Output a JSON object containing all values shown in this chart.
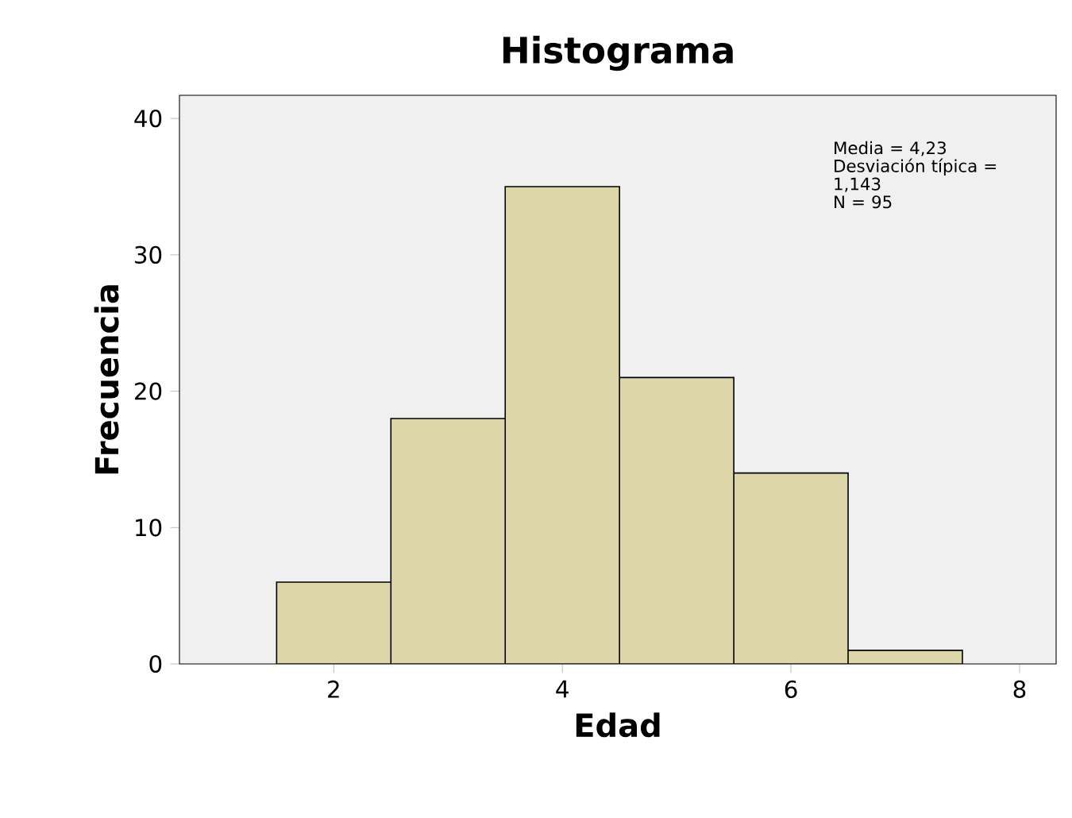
{
  "chart_data": {
    "type": "histogram",
    "title": "Histograma",
    "xlabel": "Edad",
    "ylabel": "Frecuencia",
    "bins": [
      1.5,
      2.5,
      3.5,
      4.5,
      5.5,
      6.5,
      7.5
    ],
    "values": [
      6,
      18,
      35,
      21,
      14,
      1
    ],
    "color": "#dcd6a8",
    "xlim": [
      0.65,
      8.32
    ],
    "xticks": [
      2,
      4,
      6,
      8
    ],
    "ylim": [
      0,
      41.7
    ],
    "yticks": [
      0,
      10,
      20,
      30,
      40
    ],
    "annotations": [
      "Media = 4,23",
      "Desviación típica = 1,143",
      "N = 95"
    ],
    "grid": false
  }
}
